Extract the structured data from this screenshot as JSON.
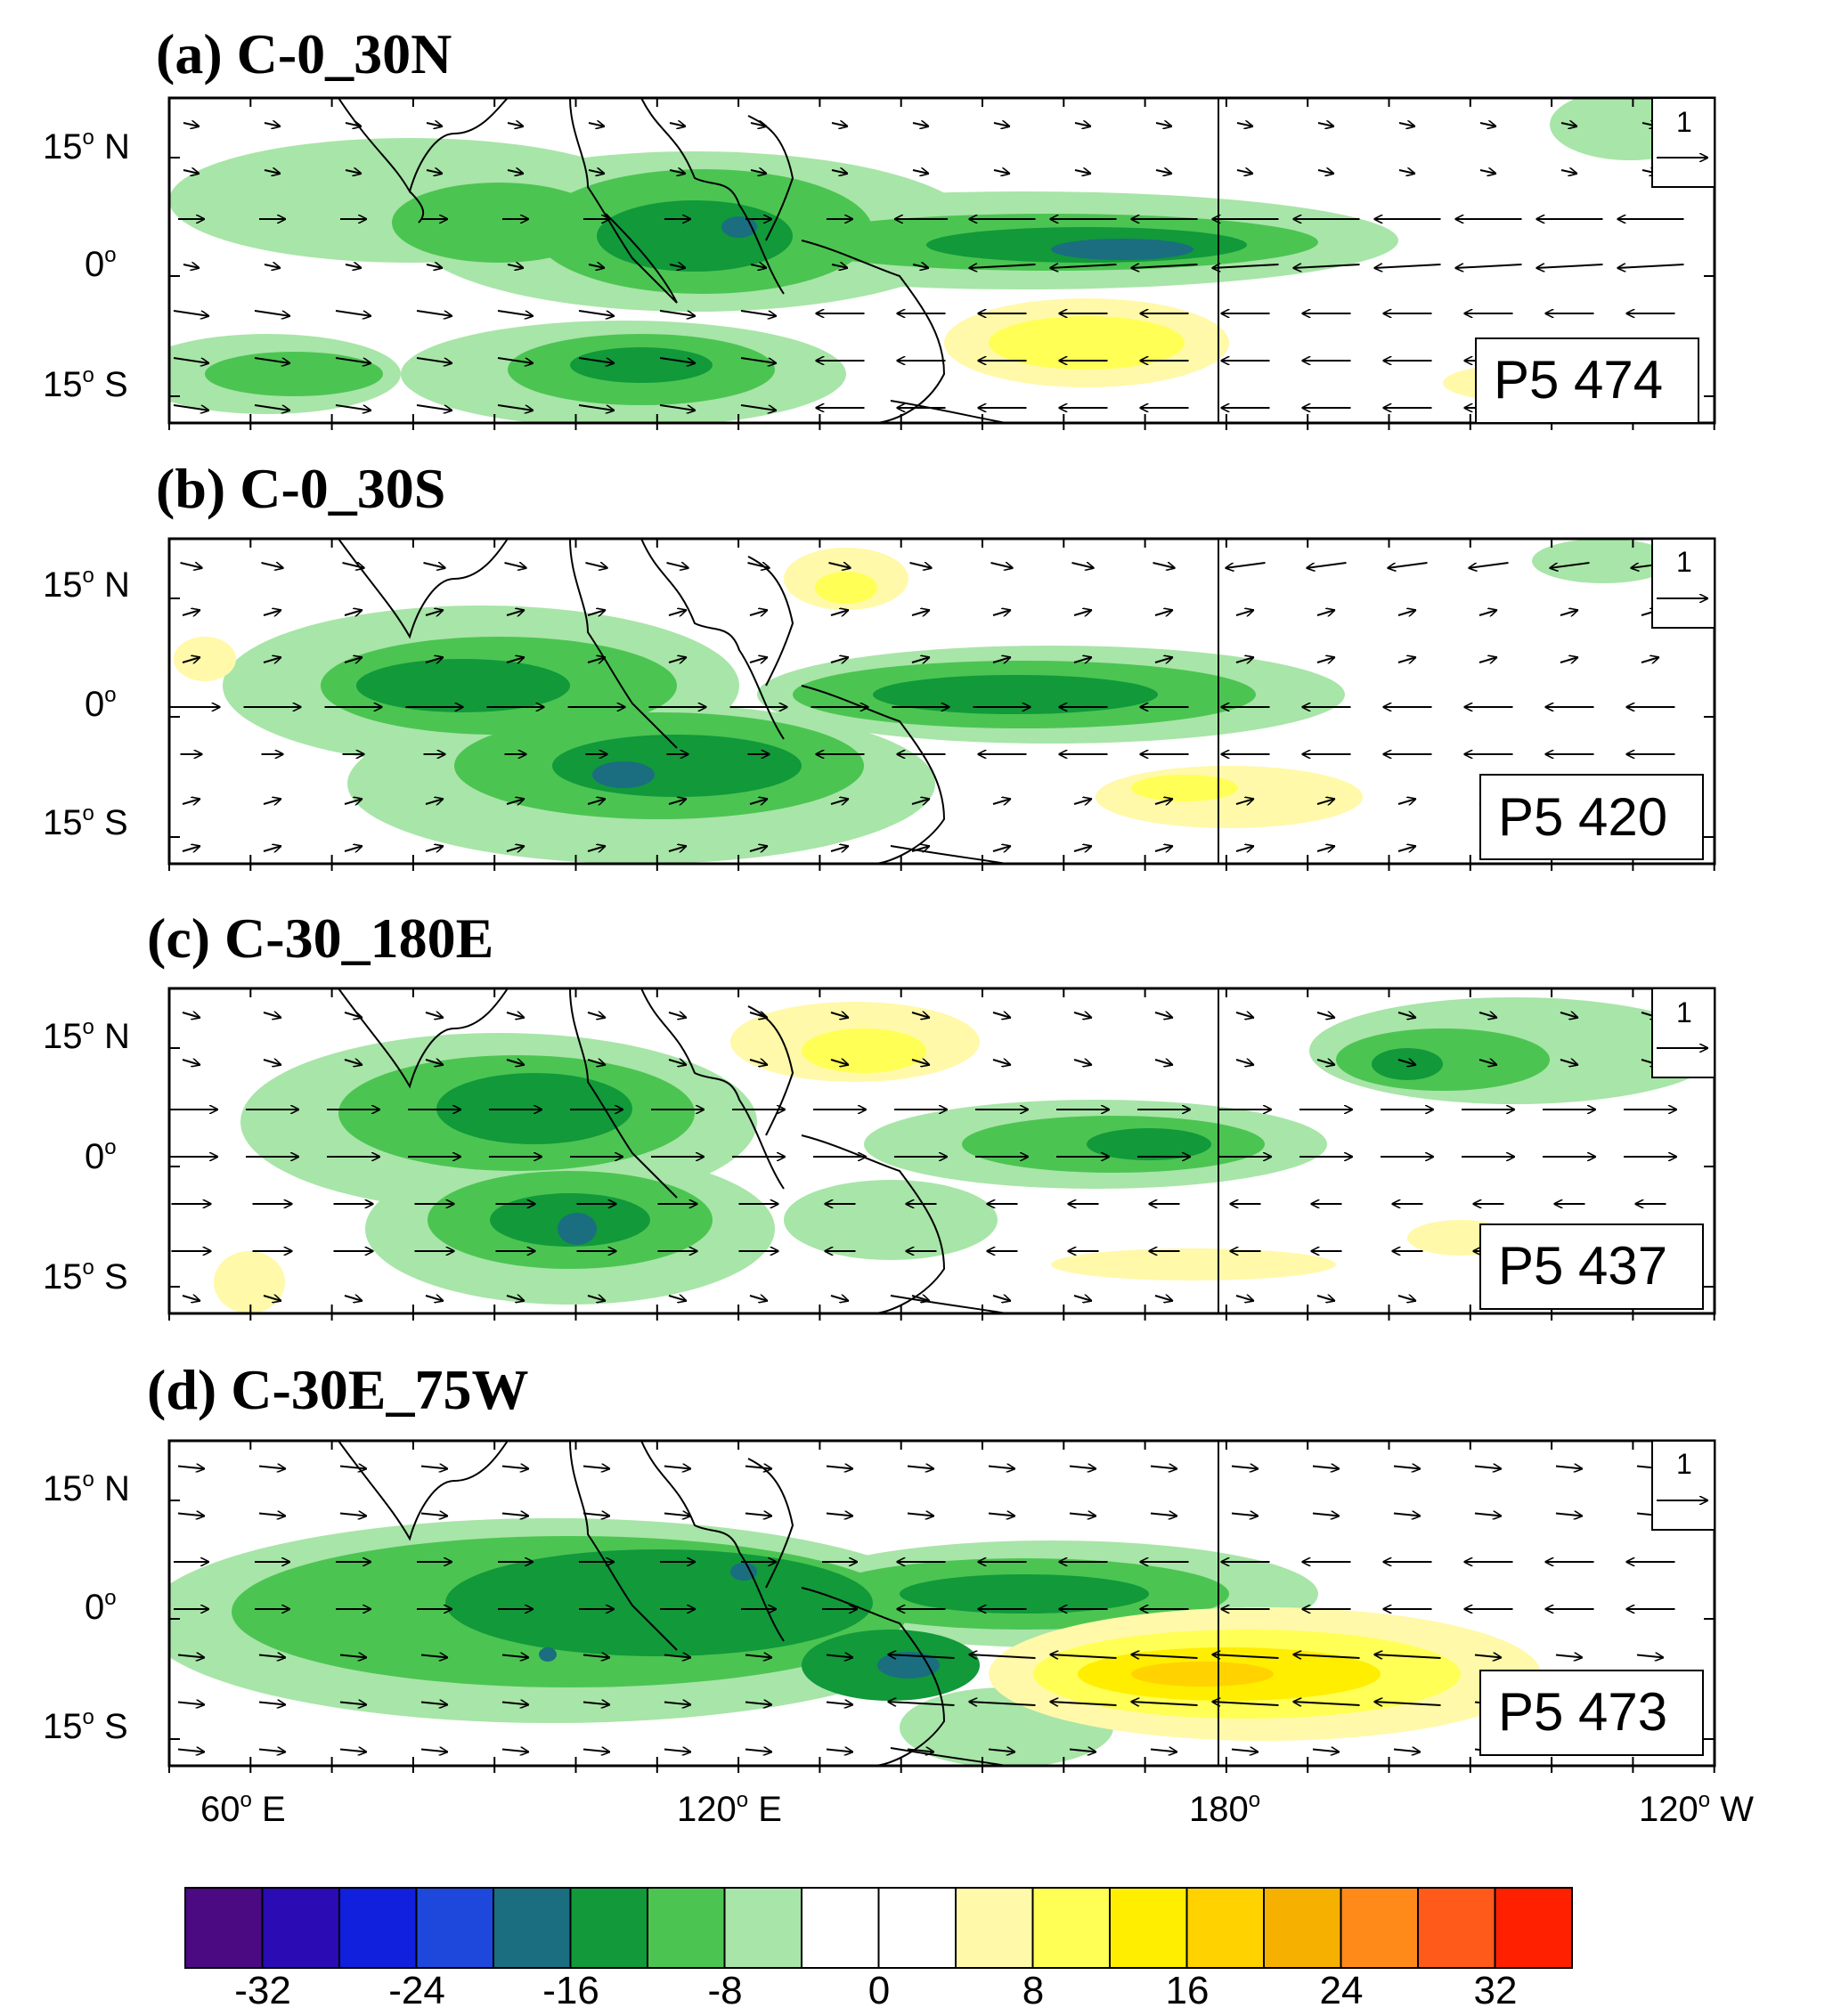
{
  "panels": [
    {
      "title": "(a) C-0_30N",
      "box": "P5 474"
    },
    {
      "title": "(b) C-0_30S",
      "box": "P5 420"
    },
    {
      "title": "(c) C-30_180E",
      "box": "P5 437"
    },
    {
      "title": "(d) C-30E_75W",
      "box": "P5 473"
    }
  ],
  "lat_labels": [
    {
      "main": "15",
      "deg": "o",
      "hemi": " N"
    },
    {
      "main": "0",
      "deg": "o",
      "hemi": ""
    },
    {
      "main": "15",
      "deg": "o",
      "hemi": " S"
    }
  ],
  "lon_labels": [
    {
      "main": "60",
      "deg": "o",
      "hemi": " E"
    },
    {
      "main": "120",
      "deg": "o",
      "hemi": " E"
    },
    {
      "main": "180",
      "deg": "o",
      "hemi": ""
    },
    {
      "main": "120",
      "deg": "o",
      "hemi": " W"
    }
  ],
  "reference_vector": {
    "label": "1"
  },
  "colorbar": {
    "colors": [
      "#4b0a82",
      "#2a0bb4",
      "#1020dd",
      "#1e48dc",
      "#1a6e80",
      "#11993a",
      "#4cc452",
      "#a8e5a8",
      "#ffffff",
      "#ffffff",
      "#fff9a9",
      "#ffff55",
      "#ffee00",
      "#ffd200",
      "#f5b000",
      "#ff8a1a",
      "#ff5a1a",
      "#ff2000"
    ],
    "ticks": [
      "-32",
      "-24",
      "-16",
      "-8",
      "0",
      "8",
      "16",
      "24",
      "32"
    ]
  },
  "colors": {
    "frame": "#000000",
    "coast": "#000000",
    "vector": "#000000"
  }
}
